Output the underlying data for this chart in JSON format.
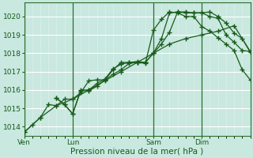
{
  "bg_color": "#c8e8e0",
  "grid_color_major_h": "#ffffff",
  "grid_color_minor_v": "#e0f0e8",
  "line_color": "#1a5c1a",
  "xlabel": "Pression niveau de la mer( hPa )",
  "ylim": [
    1013.5,
    1020.75
  ],
  "yticks": [
    1014,
    1015,
    1016,
    1017,
    1018,
    1019,
    1020
  ],
  "day_labels": [
    "Ven",
    "Lun",
    "Sam",
    "Dim"
  ],
  "day_positions": [
    0,
    3,
    8,
    11
  ],
  "total_days": 14,
  "series": [
    [
      [
        0,
        1013.7
      ],
      [
        0.5,
        1014.1
      ],
      [
        1,
        1014.5
      ],
      [
        1.5,
        1015.2
      ],
      [
        2,
        1015.15
      ],
      [
        2.5,
        1015.5
      ],
      [
        3,
        1015.5
      ],
      [
        3.5,
        1015.85
      ],
      [
        4,
        1016.5
      ],
      [
        4.5,
        1016.55
      ],
      [
        5,
        1016.55
      ],
      [
        5.5,
        1016.85
      ],
      [
        6,
        1017.1
      ],
      [
        6.5,
        1017.45
      ],
      [
        7,
        1017.5
      ],
      [
        7.5,
        1017.5
      ],
      [
        8,
        1018.0
      ],
      [
        8.5,
        1018.5
      ],
      [
        9,
        1019.15
      ],
      [
        9.5,
        1020.25
      ],
      [
        10,
        1020.25
      ],
      [
        10.5,
        1020.2
      ],
      [
        11,
        1020.2
      ],
      [
        11.5,
        1020.0
      ],
      [
        12,
        1019.9
      ],
      [
        12.5,
        1019.0
      ],
      [
        13,
        1018.6
      ],
      [
        13.5,
        1018.15
      ],
      [
        14,
        1018.1
      ]
    ],
    [
      [
        2,
        1015.55
      ],
      [
        2.5,
        1015.2
      ],
      [
        3,
        1014.7
      ],
      [
        3.5,
        1015.95
      ],
      [
        4,
        1015.95
      ],
      [
        4.5,
        1016.2
      ],
      [
        5,
        1016.55
      ],
      [
        5.5,
        1017.1
      ],
      [
        6,
        1017.5
      ],
      [
        6.5,
        1017.5
      ],
      [
        7,
        1017.55
      ],
      [
        7.5,
        1017.5
      ],
      [
        8,
        1018.0
      ],
      [
        8.5,
        1018.8
      ],
      [
        9,
        1020.2
      ],
      [
        9.5,
        1020.25
      ],
      [
        10,
        1020.2
      ],
      [
        10.5,
        1020.2
      ],
      [
        11,
        1020.2
      ],
      [
        11.5,
        1020.25
      ],
      [
        12,
        1020.0
      ],
      [
        12.5,
        1019.65
      ],
      [
        13,
        1019.1
      ],
      [
        13.5,
        1018.8
      ],
      [
        14,
        1018.05
      ]
    ],
    [
      [
        2,
        1015.55
      ],
      [
        2.5,
        1015.2
      ],
      [
        3,
        1014.7
      ],
      [
        3.5,
        1016.0
      ],
      [
        4,
        1016.0
      ],
      [
        4.5,
        1016.35
      ],
      [
        5,
        1016.6
      ],
      [
        5.5,
        1017.15
      ],
      [
        6,
        1017.4
      ],
      [
        6.5,
        1017.5
      ],
      [
        7,
        1017.5
      ],
      [
        7.5,
        1017.45
      ],
      [
        8,
        1019.25
      ],
      [
        8.5,
        1019.85
      ],
      [
        9,
        1020.25
      ],
      [
        9.5,
        1020.2
      ],
      [
        10,
        1020.0
      ],
      [
        10.5,
        1020.0
      ],
      [
        11,
        1019.45
      ],
      [
        11.5,
        1019.2
      ],
      [
        12,
        1018.85
      ],
      [
        12.5,
        1018.5
      ],
      [
        13,
        1018.15
      ],
      [
        13.5,
        1017.1
      ],
      [
        14,
        1016.55
      ]
    ],
    [
      [
        0,
        1013.7
      ],
      [
        1,
        1014.5
      ],
      [
        2,
        1015.15
      ],
      [
        3,
        1015.5
      ],
      [
        4,
        1016.0
      ],
      [
        5,
        1016.5
      ],
      [
        6,
        1017.0
      ],
      [
        7,
        1017.5
      ],
      [
        8,
        1018.0
      ],
      [
        9,
        1018.5
      ],
      [
        10,
        1018.8
      ],
      [
        11,
        1019.0
      ],
      [
        12,
        1019.2
      ],
      [
        13,
        1019.5
      ],
      [
        14,
        1018.1
      ]
    ]
  ]
}
